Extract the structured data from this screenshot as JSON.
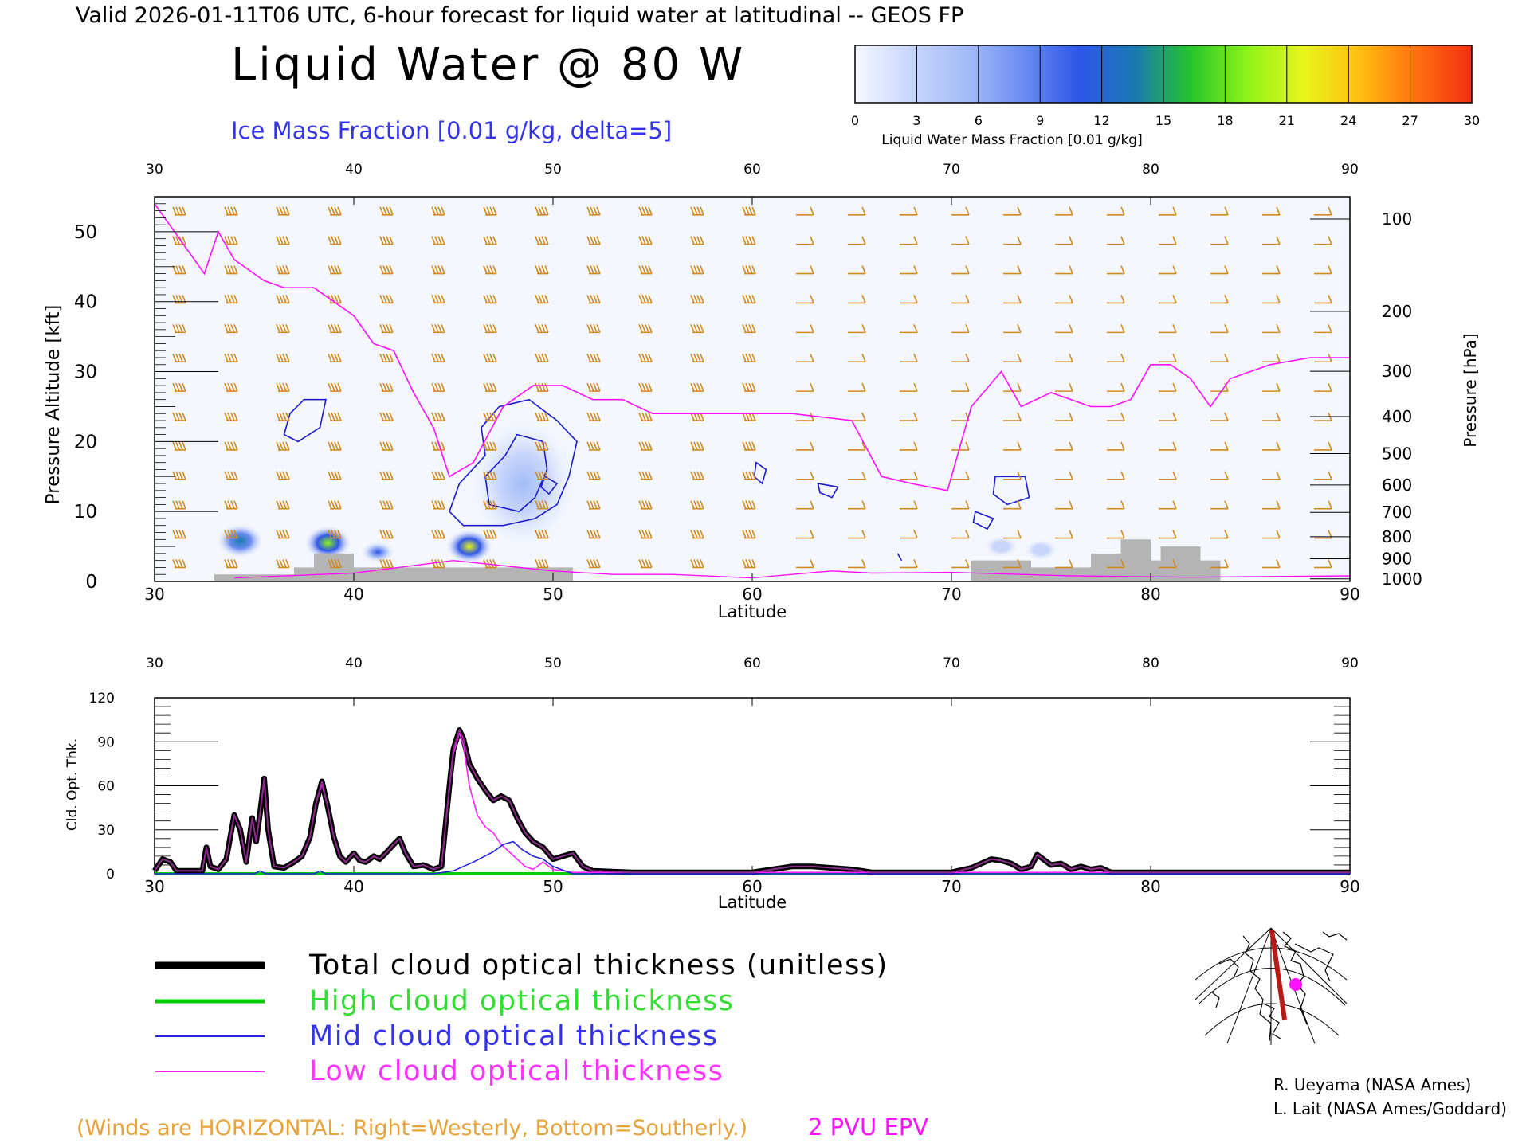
{
  "header": {
    "valid_line": "Valid 2026-01-11T06 UTC, 6-hour forecast for liquid water at latitudinal -- GEOS FP",
    "main_title": "Liquid Water @ 80 W",
    "subtitle": "Ice Mass Fraction [0.01 g/kg, delta=5]"
  },
  "colorbar": {
    "ticks": [
      "0",
      "3",
      "6",
      "9",
      "12",
      "15",
      "18",
      "21",
      "24",
      "27",
      "30"
    ],
    "label": "Liquid Water Mass Fraction [0.01 g/kg]",
    "colors": [
      "#f6f8ff",
      "#c8d6fb",
      "#a3bcf7",
      "#6b8cf0",
      "#2e56e8",
      "#1a7ab0",
      "#26c52a",
      "#8ef41a",
      "#e8f51a",
      "#ffc010",
      "#ff7010",
      "#f23010"
    ]
  },
  "colors": {
    "wind_barb": "#d08a1f",
    "ice_contour": "#1c1ccc",
    "epv": "#ff10ff",
    "terrain": "#b4b4b4",
    "total": "#000000",
    "high": "#00cc00",
    "mid": "#2222dd",
    "low": "#ff22ff"
  },
  "top_panel": {
    "xlabel": "Latitude",
    "ylabel_left": "Pressure Altitude [kft]",
    "ylabel_right": "Pressure [hPa]",
    "x_ticks": [
      "30",
      "40",
      "50",
      "60",
      "70",
      "80",
      "90"
    ],
    "left_ticks": [
      "0",
      "10",
      "20",
      "30",
      "40",
      "50"
    ],
    "right_ticks": [
      "100",
      "200",
      "300",
      "400",
      "500",
      "600",
      "700",
      "800",
      "900",
      "1000"
    ]
  },
  "bottom_panel": {
    "xlabel": "Latitude",
    "ylabel": "Cld. Opt. Thk.",
    "x_ticks": [
      "30",
      "40",
      "50",
      "60",
      "70",
      "80",
      "90"
    ],
    "y_ticks": [
      "0",
      "30",
      "60",
      "90",
      "120"
    ]
  },
  "legend": {
    "total": "Total cloud optical thickness (unitless)",
    "high": "High cloud optical thickness",
    "mid": "Mid cloud optical thickness",
    "low": "Low cloud optical thickness"
  },
  "footer": {
    "winds_note": "(Winds are HORIZONTAL: Right=Westerly, Bottom=Southerly.)",
    "epv_label": "2 PVU EPV",
    "credit_1": "R. Ueyama (NASA Ames)",
    "credit_2": "L. Lait (NASA Ames/Goddard)"
  },
  "chart_data": [
    {
      "type": "heatmap",
      "title": "Liquid Water @ 80 W",
      "subtitle": "Ice Mass Fraction [0.01 g/kg, delta=5]",
      "xlabel": "Latitude",
      "ylabel": "Pressure Altitude [kft]",
      "xlim": [
        30,
        90
      ],
      "ylim": [
        0,
        55
      ],
      "liquid_water_blobs": [
        {
          "lat": 34.3,
          "alt": 5.8,
          "value": 14
        },
        {
          "lat": 38.7,
          "alt": 5.5,
          "value": 20
        },
        {
          "lat": 41.2,
          "alt": 4.2,
          "value": 10
        },
        {
          "lat": 45.8,
          "alt": 5.0,
          "value": 21
        },
        {
          "lat": 48.5,
          "alt": 14.0,
          "value": 5
        },
        {
          "lat": 72.5,
          "alt": 5.0,
          "value": 3
        },
        {
          "lat": 74.5,
          "alt": 4.5,
          "value": 4
        }
      ],
      "terrain_kft": [
        {
          "lat": 32,
          "alt": 0
        },
        {
          "lat": 33,
          "alt": 1
        },
        {
          "lat": 36,
          "alt": 1
        },
        {
          "lat": 37,
          "alt": 2
        },
        {
          "lat": 38,
          "alt": 4
        },
        {
          "lat": 40,
          "alt": 2
        },
        {
          "lat": 44,
          "alt": 2
        },
        {
          "lat": 50,
          "alt": 2
        },
        {
          "lat": 51,
          "alt": 0
        },
        {
          "lat": 71,
          "alt": 3
        },
        {
          "lat": 74,
          "alt": 2
        },
        {
          "lat": 76,
          "alt": 2
        },
        {
          "lat": 77,
          "alt": 4
        },
        {
          "lat": 78.5,
          "alt": 6
        },
        {
          "lat": 80,
          "alt": 3
        },
        {
          "lat": 80.5,
          "alt": 5
        },
        {
          "lat": 82.5,
          "alt": 3
        },
        {
          "lat": 83.5,
          "alt": 0
        }
      ],
      "epv_2pvu_kft": [
        [
          30,
          54
        ],
        [
          31.5,
          48
        ],
        [
          32.5,
          44
        ],
        [
          33.2,
          50
        ],
        [
          34,
          46
        ],
        [
          35.5,
          43
        ],
        [
          36.5,
          42
        ],
        [
          38,
          42
        ],
        [
          40,
          38
        ],
        [
          41,
          34
        ],
        [
          42,
          33
        ],
        [
          43,
          27
        ],
        [
          44,
          22
        ],
        [
          44.8,
          15
        ],
        [
          46,
          17
        ],
        [
          47.5,
          25
        ],
        [
          49,
          28
        ],
        [
          50.5,
          28
        ],
        [
          52,
          26
        ],
        [
          53.5,
          26
        ],
        [
          55,
          24
        ],
        [
          58,
          24
        ],
        [
          62,
          24
        ],
        [
          65,
          23
        ],
        [
          66.5,
          15
        ],
        [
          68,
          14
        ],
        [
          69.8,
          13
        ],
        [
          71,
          25
        ],
        [
          72.5,
          30
        ],
        [
          73.5,
          25
        ],
        [
          75,
          27
        ],
        [
          77,
          25
        ],
        [
          78,
          25
        ],
        [
          79,
          26
        ],
        [
          80,
          31
        ],
        [
          81,
          31
        ],
        [
          82,
          29
        ],
        [
          83,
          25
        ],
        [
          84,
          29
        ],
        [
          86,
          31
        ],
        [
          88,
          32
        ],
        [
          90,
          32
        ]
      ]
    },
    {
      "type": "line",
      "xlabel": "Latitude",
      "ylabel": "Cld. Opt. Thk.",
      "xlim": [
        30,
        90
      ],
      "ylim": [
        0,
        120
      ],
      "series": [
        {
          "name": "Total cloud optical thickness (unitless)",
          "color": "#000000",
          "x": [
            30,
            30.4,
            30.8,
            31.1,
            31.5,
            32,
            32.4,
            32.6,
            32.8,
            33.2,
            33.6,
            34,
            34.3,
            34.6,
            34.9,
            35.1,
            35.3,
            35.5,
            35.7,
            36,
            36.5,
            37,
            37.4,
            37.8,
            38.1,
            38.4,
            38.7,
            39,
            39.3,
            39.6,
            40,
            40.3,
            40.6,
            41,
            41.3,
            41.6,
            42,
            42.3,
            42.6,
            43,
            43.5,
            44,
            44.4,
            44.8,
            45,
            45.3,
            45.5,
            45.8,
            46.2,
            46.6,
            47,
            47.4,
            47.8,
            48.2,
            48.6,
            49,
            49.5,
            50,
            50.5,
            51,
            51.5,
            52,
            54,
            56,
            58,
            60,
            61,
            62,
            63,
            64,
            65,
            66,
            68,
            70,
            71,
            71.5,
            72,
            72.5,
            73,
            73.5,
            74,
            74.3,
            74.6,
            75,
            75.5,
            76,
            76.5,
            77,
            77.5,
            78,
            80,
            85,
            90
          ],
          "values": [
            2,
            10,
            8,
            2,
            2,
            2,
            2,
            18,
            5,
            3,
            10,
            40,
            30,
            8,
            38,
            22,
            42,
            65,
            30,
            5,
            4,
            8,
            12,
            25,
            48,
            63,
            45,
            25,
            12,
            8,
            14,
            9,
            8,
            12,
            10,
            14,
            20,
            24,
            14,
            5,
            6,
            3,
            5,
            60,
            85,
            98,
            92,
            75,
            65,
            57,
            50,
            53,
            50,
            38,
            28,
            22,
            18,
            10,
            12,
            14,
            5,
            2,
            1,
            1,
            1,
            1,
            3,
            5,
            5,
            4,
            3,
            1,
            1,
            1,
            4,
            7,
            10,
            9,
            7,
            3,
            5,
            13,
            10,
            6,
            7,
            3,
            5,
            3,
            4,
            1,
            1,
            1,
            1
          ]
        },
        {
          "name": "High cloud optical thickness",
          "color": "#00cc00",
          "x": [
            30,
            90
          ],
          "values": [
            0,
            0
          ]
        },
        {
          "name": "Mid cloud optical thickness",
          "color": "#2222dd",
          "x": [
            30,
            35,
            35.3,
            35.6,
            36,
            38,
            38.3,
            38.6,
            44,
            45,
            46,
            47,
            47.5,
            48,
            48.5,
            49,
            49.5,
            50,
            51,
            90
          ],
          "values": [
            0,
            0,
            2,
            0,
            0,
            0,
            2,
            0,
            0,
            2,
            8,
            15,
            20,
            22,
            16,
            12,
            10,
            5,
            0,
            0
          ]
        },
        {
          "name": "Low cloud optical thickness",
          "color": "#ff22ff",
          "x": [
            30,
            30.4,
            30.8,
            31.1,
            31.5,
            32,
            32.4,
            32.6,
            32.8,
            33.2,
            33.6,
            34,
            34.3,
            34.6,
            34.9,
            35.1,
            35.3,
            35.5,
            35.7,
            36,
            36.5,
            37,
            37.4,
            37.8,
            38.1,
            38.4,
            38.7,
            39,
            39.3,
            39.6,
            40,
            40.3,
            40.6,
            41,
            41.3,
            41.6,
            42,
            42.3,
            42.6,
            43,
            43.5,
            44,
            44.4,
            44.8,
            45,
            45.3,
            45.5,
            45.8,
            46.2,
            46.6,
            47,
            47.4,
            47.8,
            48.2,
            48.6,
            49,
            49.5,
            50,
            51,
            90
          ],
          "values": [
            2,
            10,
            8,
            2,
            2,
            2,
            2,
            18,
            5,
            3,
            10,
            40,
            30,
            8,
            38,
            22,
            42,
            63,
            30,
            5,
            4,
            8,
            12,
            25,
            48,
            61,
            45,
            25,
            12,
            8,
            14,
            9,
            8,
            12,
            10,
            14,
            20,
            24,
            14,
            5,
            6,
            3,
            5,
            58,
            82,
            96,
            88,
            60,
            40,
            32,
            28,
            20,
            15,
            10,
            5,
            3,
            8,
            3,
            1,
            1
          ]
        }
      ]
    }
  ]
}
